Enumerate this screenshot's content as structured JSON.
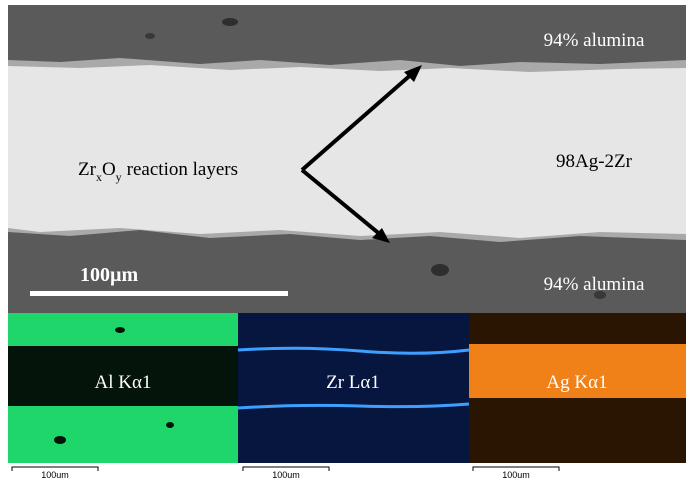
{
  "main_image": {
    "top_label": "94% alumina",
    "middle_label": "98Ag-2Zr",
    "bottom_label": "94% alumina",
    "reaction_label": {
      "element1": "Zr",
      "sub1": "x",
      "element2": "O",
      "sub2": "y",
      "rest": "reaction layers"
    },
    "scale_bar": "100µm"
  },
  "maps": [
    {
      "label": "Al Kα1",
      "scale_bar": "100um"
    },
    {
      "label": "Zr Lα1",
      "scale_bar": "100um"
    },
    {
      "label": "Ag Kα1",
      "scale_bar": "100um"
    }
  ]
}
